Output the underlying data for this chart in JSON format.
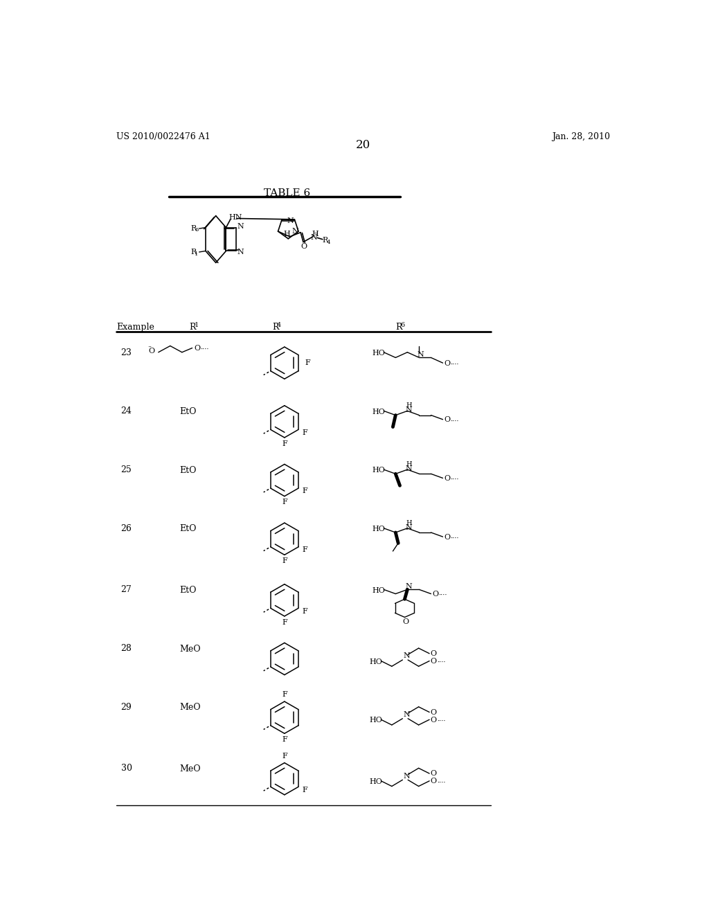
{
  "patent_number": "US 2010/0022476 A1",
  "patent_date": "Jan. 28, 2010",
  "page_number": "20",
  "table_title": "TABLE 6",
  "background_color": "#ffffff",
  "text_color": "#000000"
}
